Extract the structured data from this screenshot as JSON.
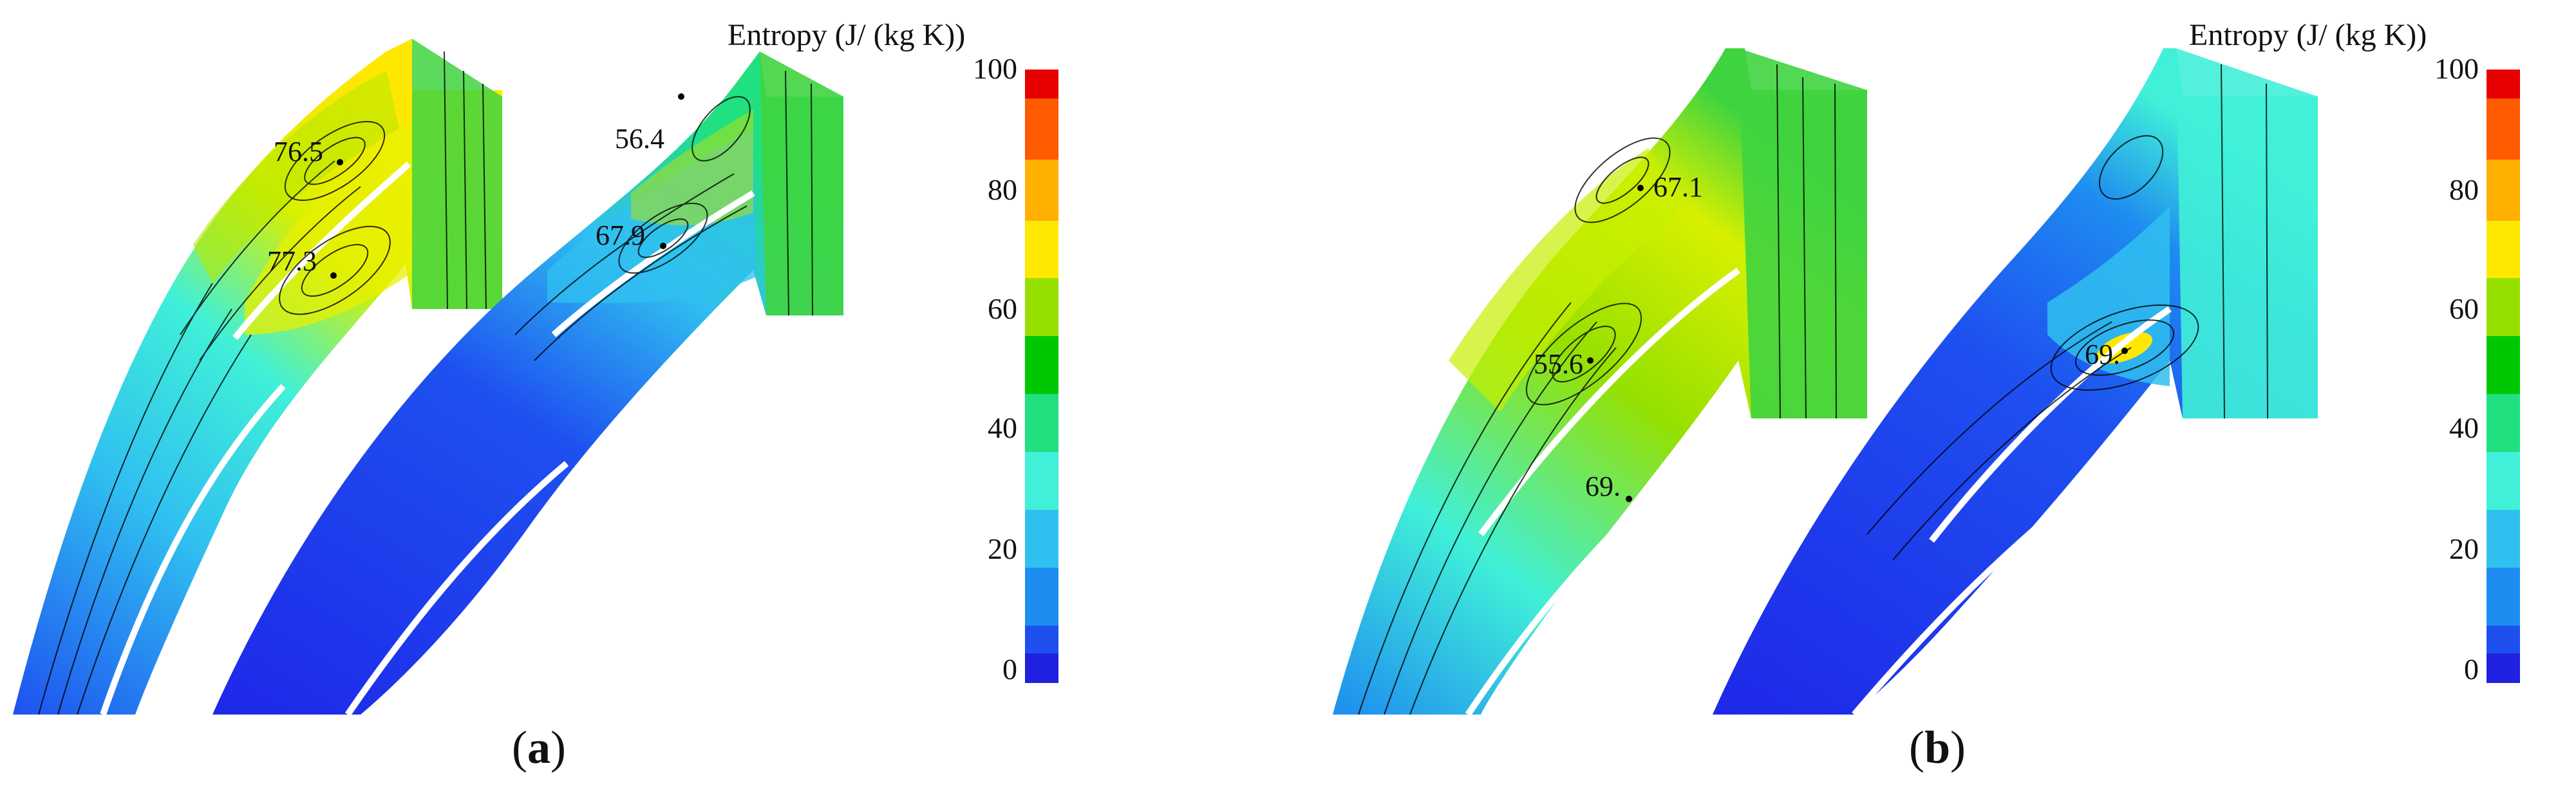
{
  "colorbar": {
    "title": "Entropy (J/ (kg K))",
    "ticks": [
      "100",
      "80",
      "60",
      "40",
      "20",
      "0"
    ],
    "bands": [
      "#e80000",
      "#ff5a00",
      "#ffb000",
      "#ffe800",
      "#d8f000",
      "#96e000",
      "#3fd43f",
      "#00c800",
      "#20e080",
      "#40f0d8",
      "#30c0f0",
      "#1e8cf0",
      "#1e50f0",
      "#2020e0"
    ]
  },
  "panels": [
    {
      "label": "a",
      "probes": [
        "76.5",
        "77.3",
        "56.4",
        "67.9"
      ]
    },
    {
      "label": "b",
      "probes": [
        "67.1",
        "55.6",
        "69.",
        "69."
      ]
    }
  ]
}
